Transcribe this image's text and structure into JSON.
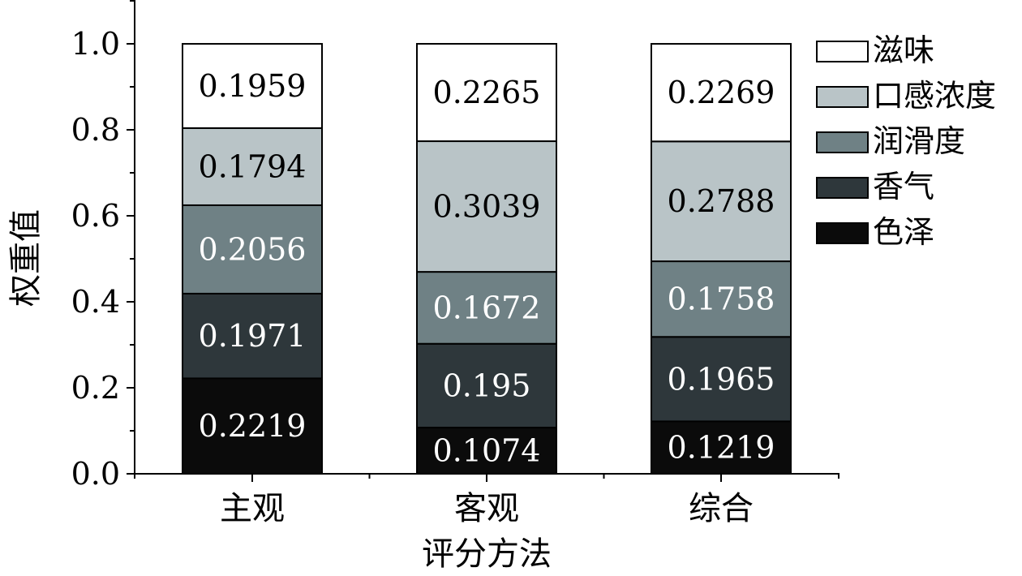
{
  "chart_data": {
    "type": "bar",
    "stacked": true,
    "xlabel": "评分方法",
    "ylabel": "权重值",
    "categories": [
      "主观",
      "客观",
      "综合"
    ],
    "ylim": [
      0,
      1.0
    ],
    "yticks": [
      "0.0",
      "0.2",
      "0.4",
      "0.6",
      "0.8",
      "1.0"
    ],
    "legend_position": "right",
    "grid": false,
    "series": [
      {
        "name": "色泽",
        "color": "#0b0b0b",
        "label_color": "#ffffff",
        "values": [
          0.2219,
          0.1074,
          0.1219
        ],
        "labels": [
          "0.2219",
          "0.1074",
          "0.1219"
        ]
      },
      {
        "name": "香气",
        "color": "#2e373b",
        "label_color": "#ffffff",
        "values": [
          0.1971,
          0.195,
          0.1965
        ],
        "labels": [
          "0.1971",
          "0.195",
          "0.1965"
        ]
      },
      {
        "name": "润滑度",
        "color": "#6f8185",
        "label_color": "#ffffff",
        "values": [
          0.2056,
          0.1672,
          0.1758
        ],
        "labels": [
          "0.2056",
          "0.1672",
          "0.1758"
        ]
      },
      {
        "name": "口感浓度",
        "color": "#b9c4c7",
        "label_color": "#000000",
        "values": [
          0.1794,
          0.3039,
          0.2788
        ],
        "labels": [
          "0.1794",
          "0.3039",
          "0.2788"
        ]
      },
      {
        "name": "滋味",
        "color": "#ffffff",
        "label_color": "#000000",
        "values": [
          0.1959,
          0.2265,
          0.2269
        ],
        "labels": [
          "0.1959",
          "0.2265",
          "0.2269"
        ]
      }
    ]
  }
}
